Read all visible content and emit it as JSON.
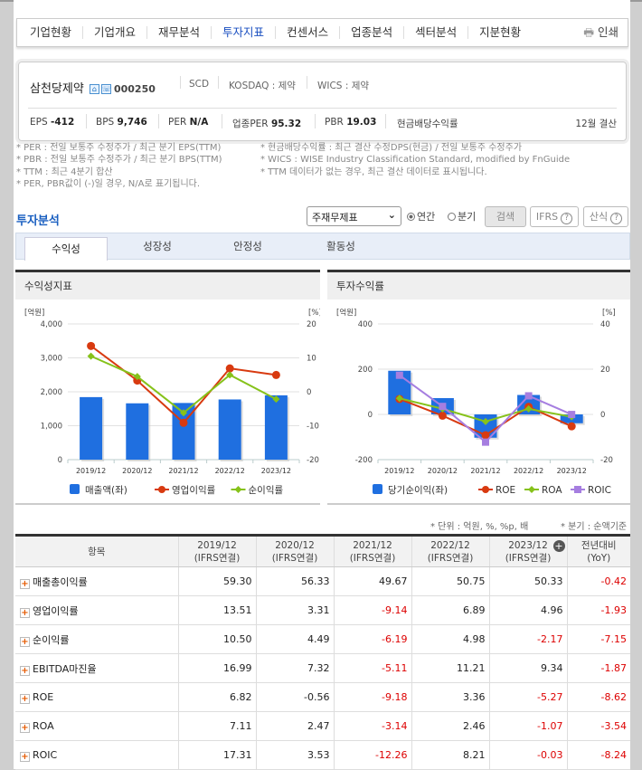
{
  "nav": {
    "items": [
      "기업현황",
      "기업개요",
      "재무분석",
      "투자지표",
      "컨센서스",
      "업종분석",
      "섹터분석",
      "지분현황"
    ],
    "active": 3,
    "print": "인쇄"
  },
  "company": {
    "name": "삼천당제약",
    "code": "000250",
    "sub": "SCD",
    "market": "KOSDAQ : 제약",
    "wics": "WICS : 제약",
    "eps_label": "EPS",
    "eps": "-412",
    "bps_label": "BPS",
    "bps": "9,746",
    "per_label": "PER",
    "per": "N/A",
    "iper_label": "업종PER",
    "iper": "95.32",
    "pbr_label": "PBR",
    "pbr": "19.03",
    "div_label": "현금배당수익률",
    "settle": "12월 결산"
  },
  "notes_left": [
    "* PER : 전일 보통주 수정주가 / 최근 분기 EPS(TTM)",
    "* PBR : 전일 보통주 수정주가 / 최근 분기 BPS(TTM)",
    "* TTM : 최근 4분기 합산",
    "* PER, PBR값이 (-)일 경우, N/A로 표기됩니다."
  ],
  "notes_right": [
    "* 현금배당수익률 : 최근 결산 수정DPS(현금) / 전일 보통주 수정주가",
    "* WICS : WISE Industry Classification Standard, modified by FnGuide",
    "* TTM 데이터가 없는 경우, 최근 결산 데이터로 표시됩니다."
  ],
  "section": {
    "title": "투자분석",
    "select": "주재무제표",
    "radio_annual": "연간",
    "radio_quarter": "분기",
    "search": "검색",
    "ifrs": "IFRS",
    "formula": "산식",
    "help": "?"
  },
  "tabs": [
    "수익성",
    "성장성",
    "안정성",
    "활동성"
  ],
  "panels": {
    "left": "수익성지표",
    "right": "투자수익률"
  },
  "chart_data": [
    {
      "type": "bar+line",
      "categories": [
        "2019/12",
        "2020/12",
        "2021/12",
        "2022/12",
        "2023/12"
      ],
      "ylabel_left": "[억원]",
      "ylabel_right": "[%]",
      "ylim_left": [
        0,
        4000
      ],
      "ylim_right": [
        -20,
        20
      ],
      "yticks_left": [
        "0",
        "1,000",
        "2,000",
        "3,000",
        "4,000"
      ],
      "yticks_right": [
        "-20",
        "-10",
        "0",
        "10",
        "20"
      ],
      "grid": true,
      "legend": "bottom",
      "series": [
        {
          "name": "매출액(좌)",
          "kind": "bar",
          "axis": "left",
          "color": "#1f6fe0",
          "values": [
            1843,
            1660,
            1670,
            1774,
            1896
          ]
        },
        {
          "name": "영업이익률",
          "kind": "line",
          "axis": "right",
          "color": "#d83a10",
          "marker": "circle",
          "values": [
            13.51,
            3.31,
            -9.14,
            6.89,
            4.96
          ]
        },
        {
          "name": "순이익률",
          "kind": "line",
          "axis": "right",
          "color": "#86c21a",
          "marker": "diamond",
          "values": [
            10.5,
            4.49,
            -6.19,
            4.98,
            -2.17
          ]
        }
      ]
    },
    {
      "type": "bar+line",
      "categories": [
        "2019/12",
        "2020/12",
        "2021/12",
        "2022/12",
        "2023/12"
      ],
      "ylabel_left": "[억원]",
      "ylabel_right": "[%]",
      "ylim_left": [
        -200,
        400
      ],
      "ylim_right": [
        -20,
        40
      ],
      "yticks_left": [
        "-200",
        "0",
        "200",
        "400"
      ],
      "yticks_right": [
        "-20",
        "0",
        "20",
        "40"
      ],
      "grid": true,
      "legend": "bottom",
      "series": [
        {
          "name": "당기순이익(좌)",
          "kind": "bar",
          "axis": "left",
          "color": "#1f6fe0",
          "values": [
            193,
            72,
            -103,
            86,
            -39
          ]
        },
        {
          "name": "ROE",
          "kind": "line",
          "axis": "right",
          "color": "#d83a10",
          "marker": "circle",
          "values": [
            6.82,
            -0.56,
            -9.18,
            3.36,
            -5.27
          ]
        },
        {
          "name": "ROA",
          "kind": "line",
          "axis": "right",
          "color": "#86c21a",
          "marker": "diamond",
          "values": [
            7.11,
            2.47,
            -3.14,
            2.46,
            -1.07
          ]
        },
        {
          "name": "ROIC",
          "kind": "line",
          "axis": "right",
          "color": "#a67ee0",
          "marker": "square",
          "values": [
            17.31,
            3.53,
            -12.26,
            8.21,
            -0.03
          ]
        }
      ]
    }
  ],
  "table": {
    "unit": "* 단위 : 억원, %, %p, 배",
    "quarter_note": "* 분기 : 순액기준",
    "headers": [
      "항목",
      "2019/12",
      "2020/12",
      "2021/12",
      "2022/12",
      "2023/12",
      "전년대비"
    ],
    "subheaders": [
      "",
      "(IFRS연결)",
      "(IFRS연결)",
      "(IFRS연결)",
      "(IFRS연결)",
      "(IFRS연결)",
      "(YoY)"
    ],
    "rows": [
      [
        "매출총이익률",
        "59.30",
        "56.33",
        "49.67",
        "50.75",
        "50.33",
        "-0.42"
      ],
      [
        "영업이익률",
        "13.51",
        "3.31",
        "-9.14",
        "6.89",
        "4.96",
        "-1.93"
      ],
      [
        "순이익률",
        "10.50",
        "4.49",
        "-6.19",
        "4.98",
        "-2.17",
        "-7.15"
      ],
      [
        "EBITDA마진율",
        "16.99",
        "7.32",
        "-5.11",
        "11.21",
        "9.34",
        "-1.87"
      ],
      [
        "ROE",
        "6.82",
        "-0.56",
        "-9.18",
        "3.36",
        "-5.27",
        "-8.62"
      ],
      [
        "ROA",
        "7.11",
        "2.47",
        "-3.14",
        "2.46",
        "-1.07",
        "-3.54"
      ],
      [
        "ROIC",
        "17.31",
        "3.53",
        "-12.26",
        "8.21",
        "-0.03",
        "-8.24"
      ]
    ]
  }
}
